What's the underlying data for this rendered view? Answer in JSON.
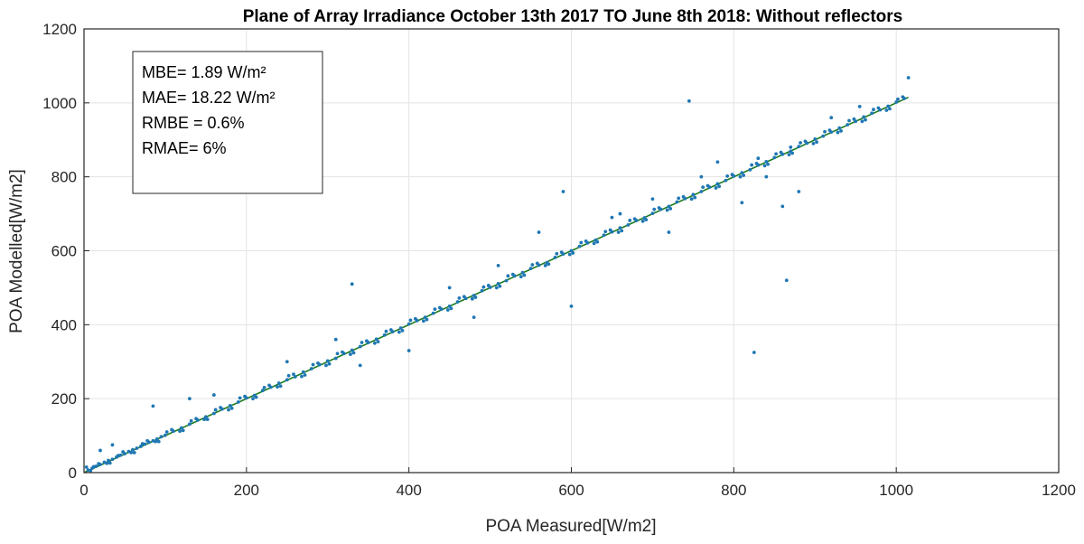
{
  "chart_data": {
    "type": "scatter",
    "title": "Plane of Array Irradiance October 13th 2017 TO June 8th 2018: Without reflectors",
    "xlabel": "POA Measured[W/m2]",
    "ylabel": "POA Modelled[W/m2]",
    "xlim": [
      0,
      1200
    ],
    "ylim": [
      0,
      1200
    ],
    "xticks": [
      0,
      200,
      400,
      600,
      800,
      1000,
      1200
    ],
    "yticks": [
      0,
      200,
      400,
      600,
      800,
      1000,
      1200
    ],
    "grid": true,
    "annotations": [
      "MBE= 1.89 W/m²",
      "MAE= 18.22 W/m²",
      "RMBE = 0.6%",
      "RMAE= 6%"
    ],
    "colors": {
      "points": "#1f77b4",
      "fit_line": "#1a7a1a",
      "axis": "#262626"
    },
    "fit_line": {
      "x": [
        0,
        1015
      ],
      "y": [
        0,
        1015
      ]
    },
    "series": [
      {
        "x": [
          5,
          10,
          15,
          20,
          25,
          30,
          35,
          40,
          45,
          50,
          55,
          60,
          65,
          70,
          75,
          80,
          85,
          90,
          95,
          100,
          110,
          120,
          130,
          140,
          150,
          160,
          170,
          180,
          190,
          200,
          210,
          220,
          230,
          240,
          250,
          260,
          270,
          280,
          290,
          300,
          310,
          320,
          330,
          340,
          350,
          360,
          370,
          380,
          390,
          400,
          410,
          420,
          430,
          440,
          450,
          460,
          470,
          480,
          490,
          500,
          510,
          520,
          530,
          540,
          550,
          560,
          570,
          580,
          590,
          600,
          610,
          620,
          630,
          640,
          650,
          660,
          670,
          680,
          690,
          700,
          710,
          720,
          730,
          740,
          750,
          760,
          770,
          780,
          790,
          800,
          810,
          820,
          830,
          840,
          850,
          860,
          870,
          880,
          890,
          900,
          910,
          920,
          930,
          940,
          950,
          960,
          970,
          980,
          990,
          1000,
          1010,
          12,
          28,
          42,
          58,
          72,
          88,
          102,
          118,
          132,
          148,
          162,
          178,
          192,
          208,
          222,
          238,
          252,
          268,
          282,
          298,
          312,
          328,
          342,
          358,
          372,
          388,
          402,
          418,
          432,
          448,
          462,
          478,
          492,
          508,
          522,
          538,
          552,
          568,
          582,
          598,
          612,
          628,
          642,
          658,
          672,
          688,
          702,
          718,
          732,
          748,
          762,
          778,
          792,
          808,
          822,
          838,
          852,
          868,
          882,
          898,
          912,
          928,
          942,
          958,
          972,
          988,
          1002,
          3,
          8,
          18,
          32,
          48,
          62,
          78,
          92,
          108,
          122,
          138,
          152,
          168,
          182,
          198,
          212,
          228,
          242,
          258,
          272,
          288,
          302,
          318,
          332,
          348,
          362,
          378,
          392,
          408,
          422,
          438,
          452,
          468,
          482,
          498,
          512,
          528,
          542,
          558,
          572,
          588,
          602,
          618,
          632,
          648,
          662,
          678,
          692,
          708,
          722,
          738,
          752,
          768,
          782,
          798,
          812,
          828,
          842,
          858,
          872,
          888,
          902,
          918,
          932,
          948,
          962,
          978,
          992,
          1008,
          1015,
          745,
          825,
          865,
          330,
          590,
          780,
          720,
          810,
          860,
          560,
          480,
          660,
          340,
          600,
          400,
          840,
          880,
          20,
          35,
          85,
          130,
          160,
          250,
          310,
          450,
          510,
          650,
          700,
          760,
          830,
          870,
          920,
          955
        ],
        "y": [
          7,
          12,
          17,
          22,
          28,
          33,
          36,
          42,
          47,
          51,
          57,
          62,
          66,
          71,
          77,
          82,
          86,
          91,
          97,
          101,
          112,
          121,
          131,
          142,
          151,
          160,
          172,
          181,
          191,
          202,
          209,
          222,
          231,
          242,
          251,
          259,
          272,
          281,
          292,
          302,
          309,
          322,
          331,
          341,
          352,
          361,
          372,
          381,
          391,
          402,
          411,
          420,
          431,
          442,
          450,
          462,
          471,
          479,
          492,
          501,
          511,
          519,
          532,
          541,
          552,
          561,
          568,
          582,
          591,
          600,
          612,
          621,
          629,
          642,
          651,
          662,
          670,
          682,
          689,
          701,
          712,
          720,
          732,
          741,
          752,
          760,
          772,
          781,
          790,
          802,
          811,
          819,
          832,
          841,
          852,
          861,
          869,
          882,
          891,
          902,
          910,
          921,
          932,
          941,
          950,
          962,
          972,
          981,
          991,
          1002,
          1012,
          16,
          25,
          46,
          54,
          78,
          84,
          110,
          112,
          140,
          144,
          170,
          170,
          202,
          200,
          230,
          232,
          262,
          260,
          292,
          290,
          322,
          320,
          352,
          350,
          382,
          380,
          412,
          410,
          442,
          440,
          472,
          470,
          502,
          500,
          532,
          530,
          562,
          560,
          592,
          590,
          622,
          620,
          652,
          650,
          682,
          680,
          712,
          710,
          742,
          740,
          772,
          770,
          802,
          800,
          832,
          830,
          862,
          860,
          892,
          890,
          922,
          920,
          952,
          950,
          982,
          980,
          1010,
          15,
          5,
          24,
          26,
          56,
          54,
          86,
          84,
          116,
          114,
          146,
          144,
          176,
          174,
          206,
          204,
          236,
          234,
          266,
          264,
          296,
          294,
          326,
          324,
          356,
          354,
          386,
          384,
          416,
          414,
          446,
          444,
          476,
          474,
          506,
          504,
          536,
          534,
          566,
          564,
          596,
          594,
          626,
          624,
          656,
          654,
          686,
          684,
          716,
          714,
          746,
          744,
          776,
          774,
          806,
          804,
          836,
          834,
          866,
          864,
          896,
          894,
          926,
          924,
          956,
          954,
          986,
          984,
          1016,
          1068,
          1005,
          325,
          520,
          510,
          760,
          840,
          650,
          730,
          720,
          650,
          420,
          700,
          290,
          450,
          330,
          800,
          760,
          60,
          75,
          180,
          200,
          210,
          300,
          360,
          500,
          560,
          690,
          740,
          800,
          850,
          880,
          960,
          990
        ]
      }
    ]
  }
}
